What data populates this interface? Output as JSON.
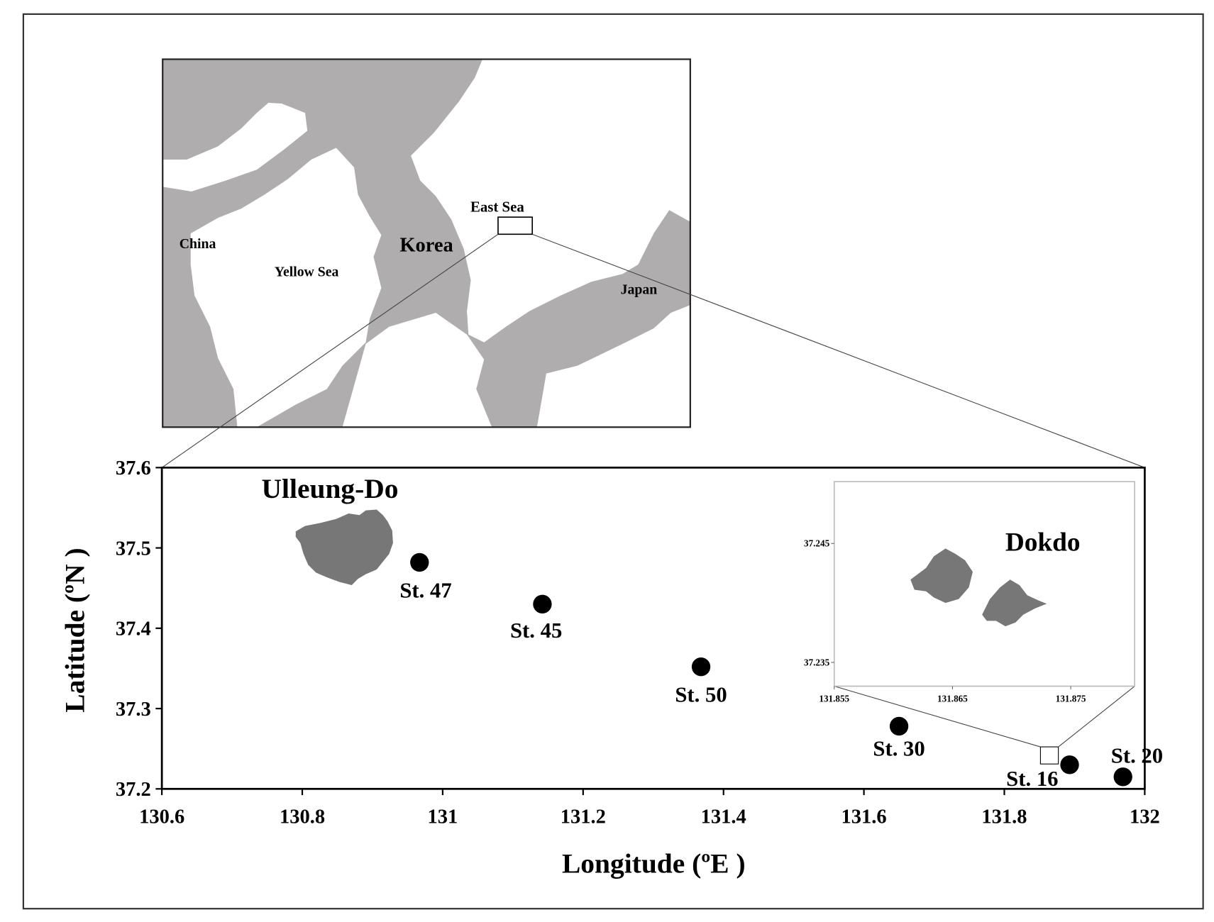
{
  "chart_data": [
    {
      "type": "scatter",
      "x_label": "Longitude (ºE )",
      "y_label": "Latitude (ºN )",
      "annotations": [
        "Ulleung-Do"
      ],
      "x": [
        130.967,
        131.142,
        131.368,
        131.65,
        131.893,
        131.969
      ],
      "values": [
        37.482,
        37.43,
        37.352,
        37.278,
        37.23,
        37.215
      ],
      "point_labels": [
        "St. 47",
        "St. 45",
        "St. 50",
        "St. 30",
        "St. 16",
        "St. 20"
      ],
      "color": "#000000",
      "xlim": [
        130.6,
        132
      ],
      "xticks": [
        130.6,
        130.8,
        131,
        131.2,
        131.4,
        131.6,
        131.8,
        132
      ],
      "ylim": [
        37.2,
        37.6
      ],
      "yticks": [
        37.2,
        37.3,
        37.4,
        37.5,
        37.6
      ]
    },
    {
      "type": "map",
      "title": "Dokdo",
      "xlim": [
        131.855,
        131.8804
      ],
      "xticks": [
        131.855,
        131.865,
        131.875
      ],
      "ylim": [
        37.233,
        37.2502
      ],
      "yticks": [
        37.245,
        37.235
      ]
    },
    {
      "type": "map",
      "labels": [
        "China",
        "Yellow Sea",
        "Korea",
        "East Sea",
        "Japan"
      ]
    }
  ]
}
